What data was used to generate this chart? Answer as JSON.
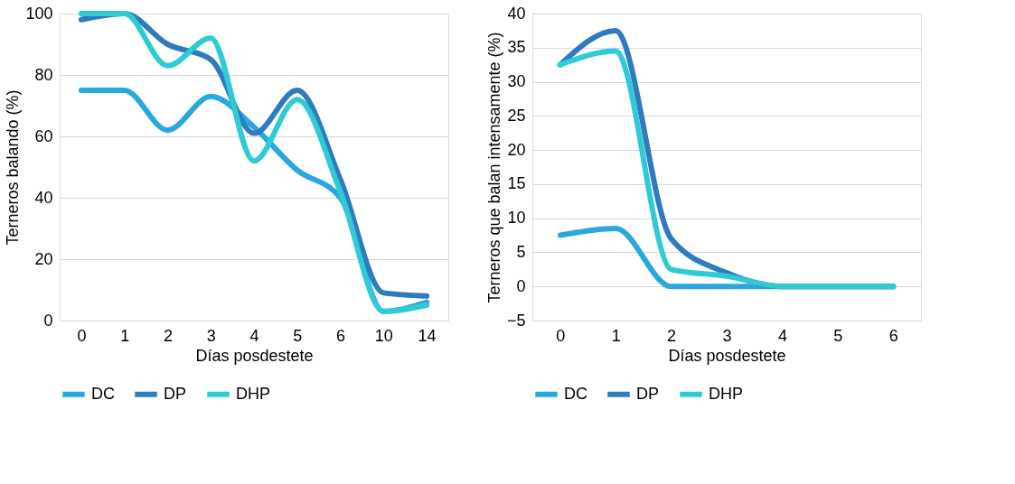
{
  "chart_data": [
    {
      "type": "line",
      "xlabel": "Días posdestete",
      "ylabel": "Terneros balando (%)",
      "categories": [
        "0",
        "1",
        "2",
        "3",
        "4",
        "5",
        "6",
        "10",
        "14"
      ],
      "ylim": [
        0,
        100
      ],
      "yticks": [
        0,
        20,
        40,
        60,
        80,
        100
      ],
      "grid": "y",
      "legend": "bottom",
      "marker": "none",
      "line_style": "solid",
      "series": [
        {
          "name": "DC",
          "color": "#29a8e0",
          "values": [
            75,
            75,
            62,
            73,
            63,
            49,
            40,
            3,
            6
          ]
        },
        {
          "name": "DP",
          "color": "#2e7bbf",
          "values": [
            98,
            100,
            90,
            85,
            61,
            75,
            46,
            9,
            8
          ]
        },
        {
          "name": "DHP",
          "color": "#2ecbd4",
          "values": [
            100,
            100,
            83,
            92,
            52,
            72,
            42,
            3,
            5
          ]
        }
      ]
    },
    {
      "type": "line",
      "xlabel": "Días posdestete",
      "ylabel": "Terneros que balan intensamente (%)",
      "categories": [
        "0",
        "1",
        "2",
        "3",
        "4",
        "5",
        "6"
      ],
      "ylim": [
        -5,
        40
      ],
      "yticks": [
        -5,
        0,
        5,
        10,
        15,
        20,
        25,
        30,
        35,
        40
      ],
      "grid": "y",
      "legend": "bottom",
      "marker": "none",
      "line_style": "solid",
      "series": [
        {
          "name": "DC",
          "color": "#29a8e0",
          "values": [
            7.5,
            8.5,
            0,
            0,
            0,
            0,
            0
          ]
        },
        {
          "name": "DP",
          "color": "#2e7bbf",
          "values": [
            32.5,
            37.5,
            7,
            2,
            0,
            0,
            0
          ]
        },
        {
          "name": "DHP",
          "color": "#2ecbd4",
          "values": [
            32.5,
            34.5,
            2.5,
            1.5,
            0,
            0,
            0
          ]
        }
      ]
    }
  ]
}
